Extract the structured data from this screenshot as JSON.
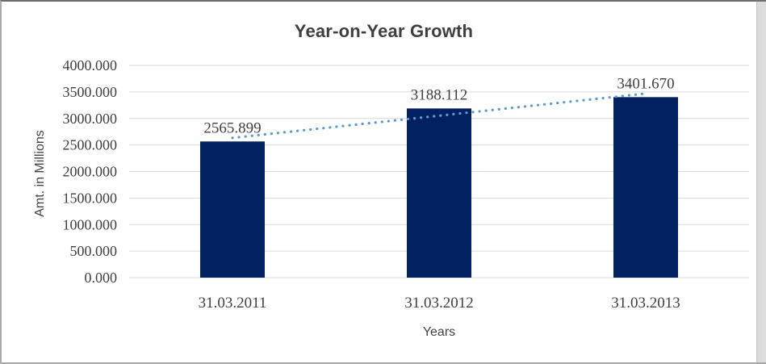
{
  "chart_data": {
    "type": "bar",
    "title": "Year-on-Year Growth",
    "xlabel": "Years",
    "ylabel": "Amt. in Millions",
    "categories": [
      "31.03.2011",
      "31.03.2012",
      "31.03.2013"
    ],
    "values": [
      2565.899,
      3188.112,
      3401.67
    ],
    "data_labels": [
      "2565.899",
      "3188.112",
      "3401.670"
    ],
    "ytick_labels": [
      "0.000",
      "500.000",
      "1000.000",
      "1500.000",
      "2000.000",
      "2500.000",
      "3000.000",
      "3500.000",
      "4000.000"
    ],
    "ylim": [
      0,
      4000
    ],
    "grid": true,
    "legend": "none",
    "trendline": {
      "type": "linear",
      "style": "dotted",
      "color": "#5B9BD5"
    },
    "colors": {
      "bar": "#002060",
      "gridline": "#D9D9D9",
      "text": "#404040",
      "title": "#3F3F3F"
    }
  }
}
